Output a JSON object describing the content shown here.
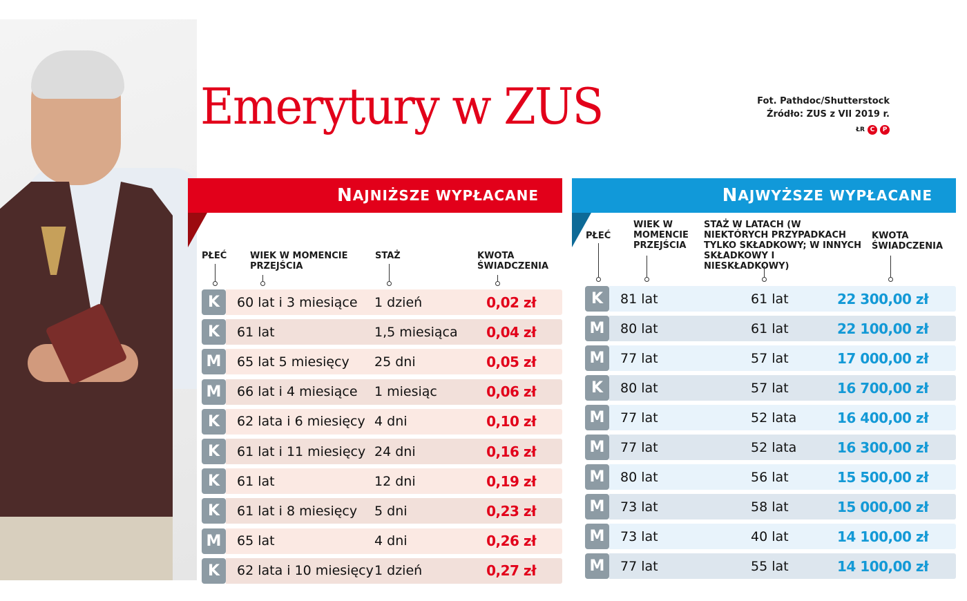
{
  "header": {
    "title": "Emerytury w ZUS",
    "photo_credit": "Fot. Pathdoc/Shutterstock",
    "source": "Źródło: ZUS z VII 2019 r.",
    "author_initials": "ŁR",
    "logo_letters": [
      "C",
      "P"
    ]
  },
  "photo": {
    "description": "elderly man in brown vest holding wallet"
  },
  "lowest": {
    "title_initial": "N",
    "title_rest": "ajniższe wypłacane",
    "colors": {
      "accent": "#e2001a",
      "fold": "#9c0a0f",
      "row_light": "#fbe9e3",
      "row_dark": "#f2e0da"
    },
    "columns": {
      "sex": "PŁEĆ",
      "age": "WIEK W MOMENCIE PRZEJŚCIA",
      "tenure": "STAŻ",
      "amount": "KWOTA ŚWIADCZENIA"
    },
    "rows": [
      {
        "sex": "K",
        "age": "60 lat i 3 miesiące",
        "tenure": "1 dzień",
        "amount": "0,02 zł"
      },
      {
        "sex": "K",
        "age": "61 lat",
        "tenure": "1,5 miesiąca",
        "amount": "0,04 zł"
      },
      {
        "sex": "M",
        "age": "65 lat 5 miesięcy",
        "tenure": "25 dni",
        "amount": "0,05 zł"
      },
      {
        "sex": "M",
        "age": "66 lat i 4 miesiące",
        "tenure": "1 miesiąc",
        "amount": "0,06 zł"
      },
      {
        "sex": "K",
        "age": "62 lata i 6 miesięcy",
        "tenure": "4 dni",
        "amount": "0,10 zł"
      },
      {
        "sex": "K",
        "age": "61 lat i 11 miesięcy",
        "tenure": "24 dni",
        "amount": "0,16 zł"
      },
      {
        "sex": "K",
        "age": "61 lat",
        "tenure": "12 dni",
        "amount": "0,19 zł"
      },
      {
        "sex": "K",
        "age": "61 lat i 8 miesięcy",
        "tenure": "5 dni",
        "amount": "0,23 zł"
      },
      {
        "sex": "M",
        "age": "65 lat",
        "tenure": "4 dni",
        "amount": "0,26 zł"
      },
      {
        "sex": "K",
        "age": "62 lata i 10 miesięcy",
        "tenure": "1 dzień",
        "amount": "0,27 zł"
      }
    ]
  },
  "highest": {
    "title_initial": "N",
    "title_rest": "ajwyższe wypłacane",
    "colors": {
      "accent": "#1199d9",
      "fold": "#0d6a97",
      "row_light": "#e8f3fb",
      "row_dark": "#dde6ee"
    },
    "columns": {
      "sex": "PŁEĆ",
      "age": "WIEK W MOMENCIE PRZEJŚCIA",
      "tenure": "STAŻ W LATACH (W NIEKTÓRYCH PRZYPADKACH TYLKO SKŁADKOWY; W INNYCH SKŁADKOWY I NIESKŁADKOWY)",
      "amount": "KWOTA ŚWIADCZENIA"
    },
    "rows": [
      {
        "sex": "K",
        "age": "81 lat",
        "tenure": "61 lat",
        "amount": "22 300,00 zł"
      },
      {
        "sex": "M",
        "age": "80 lat",
        "tenure": "61 lat",
        "amount": "22 100,00 zł"
      },
      {
        "sex": "M",
        "age": "77 lat",
        "tenure": "57 lat",
        "amount": "17 000,00 zł"
      },
      {
        "sex": "K",
        "age": "80 lat",
        "tenure": "57 lat",
        "amount": "16 700,00 zł"
      },
      {
        "sex": "M",
        "age": "77 lat",
        "tenure": "52 lata",
        "amount": "16 400,00 zł"
      },
      {
        "sex": "M",
        "age": "77 lat",
        "tenure": "52 lata",
        "amount": "16 300,00 zł"
      },
      {
        "sex": "M",
        "age": "80 lat",
        "tenure": "56 lat",
        "amount": "15 500,00 zł"
      },
      {
        "sex": "M",
        "age": "73 lat",
        "tenure": "58 lat",
        "amount": "15 000,00 zł"
      },
      {
        "sex": "M",
        "age": "73 lat",
        "tenure": "40 lat",
        "amount": "14 100,00 zł"
      },
      {
        "sex": "M",
        "age": "77 lat",
        "tenure": "55 lat",
        "amount": "14 100,00 zł"
      }
    ]
  }
}
